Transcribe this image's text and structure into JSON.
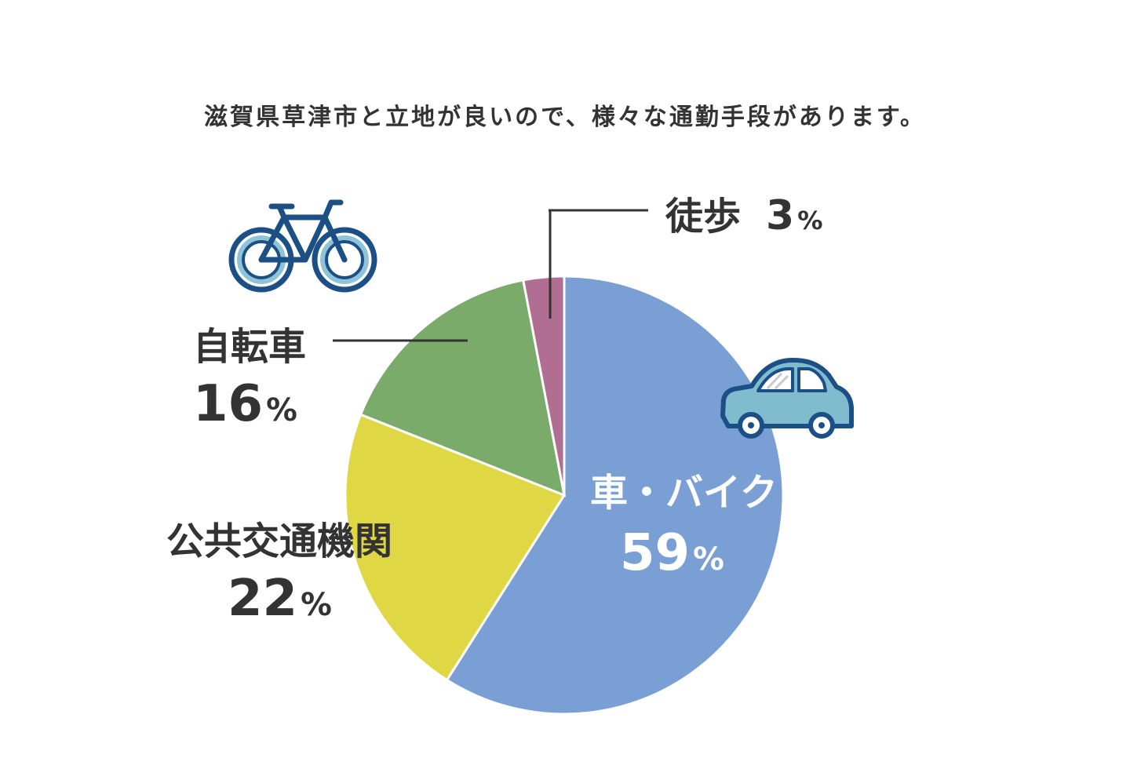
{
  "title": "滋賀県草津市と立地が良いので、様々な通勤手段があります。",
  "chart_data": {
    "type": "pie",
    "title": "滋賀県草津市と立地が良いので、様々な通勤手段があります。",
    "unit": "%",
    "slices": [
      {
        "label": "車・バイク",
        "value": 59,
        "color": "#7a9fd4"
      },
      {
        "label": "公共交通機関",
        "value": 22,
        "color": "#dfd844"
      },
      {
        "label": "自転車",
        "value": 16,
        "color": "#7aab6b"
      },
      {
        "label": "徒歩",
        "value": 3,
        "color": "#b06e93"
      }
    ],
    "start_angle_deg": 0,
    "direction": "clockwise",
    "legend": "none"
  },
  "icons": {
    "bicycle": "bicycle-icon",
    "car": "car-icon"
  },
  "colors": {
    "text": "#333333",
    "inner_label": "#ffffff",
    "icon_outline": "#1b4f85",
    "icon_fill": "#80bccd"
  }
}
